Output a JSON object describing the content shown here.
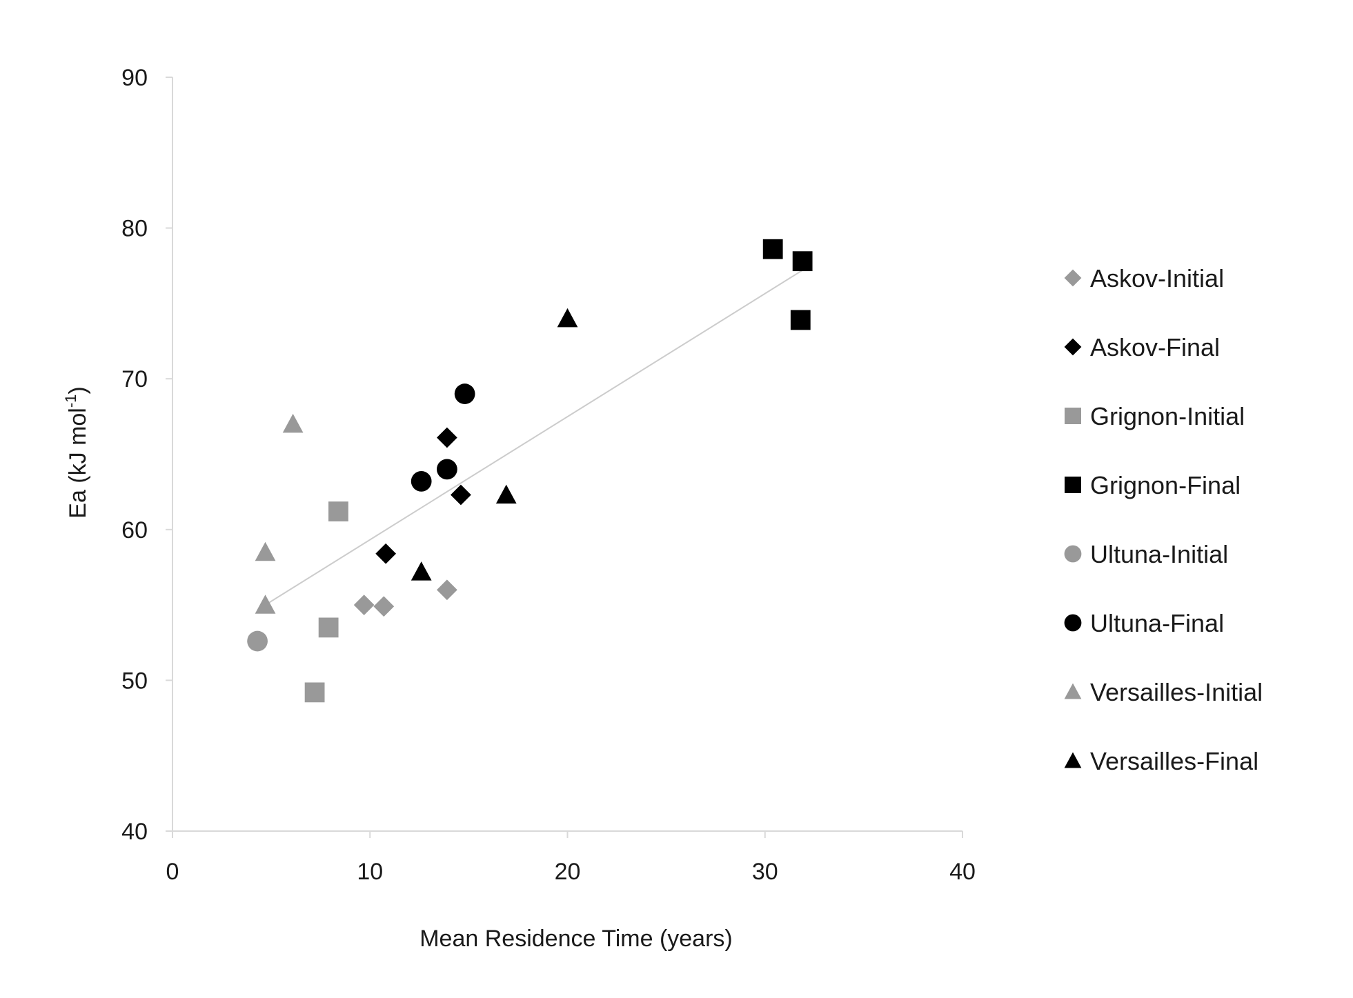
{
  "chart_data": {
    "type": "scatter",
    "xlabel": "Mean Residence Time (years)",
    "ylabel": "Ea (kJ mol",
    "ylabel_superscript": "-1",
    "ylabel_suffix": ")",
    "xlim": [
      0,
      40
    ],
    "ylim": [
      40,
      90
    ],
    "xticks": [
      "0",
      "10",
      "20",
      "30",
      "40"
    ],
    "yticks": [
      "40",
      "50",
      "60",
      "70",
      "80",
      "90"
    ],
    "grid": false,
    "legend_position": "right",
    "series": [
      {
        "name": "Askov-Initial",
        "marker": "diamond",
        "color": "#999999",
        "points": [
          {
            "x": 9.7,
            "y": 55.0
          },
          {
            "x": 10.7,
            "y": 54.9
          },
          {
            "x": 13.9,
            "y": 56.0
          }
        ]
      },
      {
        "name": "Askov-Final",
        "marker": "diamond",
        "color": "#000000",
        "points": [
          {
            "x": 10.8,
            "y": 58.4
          },
          {
            "x": 13.9,
            "y": 66.1
          },
          {
            "x": 14.6,
            "y": 62.3
          }
        ]
      },
      {
        "name": "Grignon-Initial",
        "marker": "square",
        "color": "#999999",
        "points": [
          {
            "x": 7.2,
            "y": 49.2
          },
          {
            "x": 7.9,
            "y": 53.5
          },
          {
            "x": 8.4,
            "y": 61.2
          }
        ]
      },
      {
        "name": "Grignon-Final",
        "marker": "square",
        "color": "#000000",
        "points": [
          {
            "x": 30.4,
            "y": 78.6
          },
          {
            "x": 31.9,
            "y": 77.8
          },
          {
            "x": 31.8,
            "y": 73.9
          }
        ]
      },
      {
        "name": "Ultuna-Initial",
        "marker": "circle",
        "color": "#999999",
        "points": [
          {
            "x": 4.3,
            "y": 52.6
          }
        ]
      },
      {
        "name": "Ultuna-Final",
        "marker": "circle",
        "color": "#000000",
        "points": [
          {
            "x": 12.6,
            "y": 63.2
          },
          {
            "x": 13.9,
            "y": 64.0
          },
          {
            "x": 14.8,
            "y": 69.0
          }
        ]
      },
      {
        "name": "Versailles-Initial",
        "marker": "triangle",
        "color": "#999999",
        "points": [
          {
            "x": 4.7,
            "y": 55.0
          },
          {
            "x": 4.7,
            "y": 58.5
          },
          {
            "x": 6.1,
            "y": 67.0
          }
        ]
      },
      {
        "name": "Versailles-Final",
        "marker": "triangle",
        "color": "#000000",
        "points": [
          {
            "x": 12.6,
            "y": 57.2
          },
          {
            "x": 16.9,
            "y": 62.3
          },
          {
            "x": 20.0,
            "y": 74.0
          }
        ]
      }
    ],
    "trendline": {
      "color": "#cccccc",
      "points": [
        {
          "x": 4.7,
          "y": 55.0
        },
        {
          "x": 31.9,
          "y": 77.2
        }
      ]
    }
  }
}
